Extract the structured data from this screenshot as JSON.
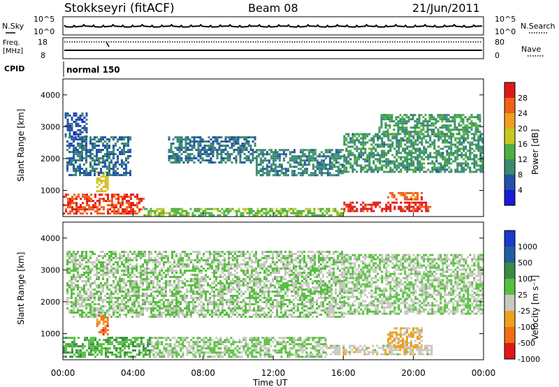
{
  "header": {
    "station": "Stokkseyri (fitACF)",
    "beam": "Beam 08",
    "date": "21/Jun/2011"
  },
  "strip_noise": {
    "left_label": "N.Sky",
    "right_label": "N.Search",
    "left_ticks": [
      "10^5",
      "10^0"
    ],
    "right_ticks": [
      "10^5",
      "10^0"
    ]
  },
  "strip_freq": {
    "left_label_line1": "Freq.",
    "left_label_line2": "[MHz]",
    "right_label": "Nave",
    "left_ticks": [
      "18",
      "8"
    ],
    "right_ticks": [
      "80",
      "0"
    ]
  },
  "strip_cpid": {
    "label": "CPID",
    "mode_text": "normal 150"
  },
  "xaxis": {
    "label": "Time UT",
    "ticks": [
      "00:00",
      "04:00",
      "08:00",
      "12:00",
      "16:00",
      "20:00",
      "00:00"
    ]
  },
  "power_panel": {
    "ylabel": "Slant Range [km]",
    "yticks": [
      "1000",
      "2000",
      "3000",
      "4000"
    ],
    "colorbar_label": "Power [dB]",
    "colorbar_ticks": [
      "4",
      "8",
      "12",
      "16",
      "20",
      "24",
      "28"
    ],
    "colorbar_colors": [
      "#1a1ad8",
      "#2450a8",
      "#3a8a70",
      "#4fb040",
      "#c8c820",
      "#f0a020",
      "#f06018",
      "#e01818"
    ]
  },
  "velocity_panel": {
    "ylabel": "Slant Range [km]",
    "yticks": [
      "1000",
      "2000",
      "3000",
      "4000"
    ],
    "colorbar_label": "Velocity [m s⁻¹]",
    "colorbar_ticks": [
      "1000",
      "500",
      "100",
      "25",
      "-25",
      "-100",
      "-500",
      "-1000"
    ],
    "colorbar_colors": [
      "#1a3ac8",
      "#2060a0",
      "#3a8a48",
      "#58c040",
      "#c8c8c0",
      "#f0a020",
      "#f07010",
      "#e01818"
    ]
  },
  "chart_data": [
    {
      "type": "heatmap",
      "title": "Power [dB]",
      "xlabel": "Time UT",
      "ylabel": "Slant Range [km]",
      "xlim": [
        0,
        24
      ],
      "ylim": [
        180,
        4500
      ],
      "value_range": [
        0,
        30
      ],
      "regions": [
        {
          "t0": 0.0,
          "t1": 4.6,
          "r0": 250,
          "r1": 900,
          "value": 26
        },
        {
          "t0": 4.6,
          "t1": 16.0,
          "r0": 200,
          "r1": 450,
          "value": 14
        },
        {
          "t0": 16.0,
          "t1": 21.0,
          "r0": 350,
          "r1": 650,
          "value": 28
        },
        {
          "t0": 18.5,
          "t1": 20.5,
          "r0": 700,
          "r1": 950,
          "value": 24
        },
        {
          "t0": 1.9,
          "t1": 2.6,
          "r0": 950,
          "r1": 1600,
          "value": 18
        },
        {
          "t0": 0.2,
          "t1": 3.8,
          "r0": 1500,
          "r1": 2700,
          "value": 7
        },
        {
          "t0": 6.0,
          "t1": 11.0,
          "r0": 1900,
          "r1": 2700,
          "value": 8
        },
        {
          "t0": 11.0,
          "t1": 16.0,
          "r0": 1500,
          "r1": 2300,
          "value": 9
        },
        {
          "t0": 16.0,
          "t1": 24.0,
          "r0": 1600,
          "r1": 2800,
          "value": 10
        },
        {
          "t0": 18.0,
          "t1": 23.8,
          "r0": 2800,
          "r1": 3400,
          "value": 11
        },
        {
          "t0": 0.1,
          "t1": 1.4,
          "r0": 2700,
          "r1": 3450,
          "value": 6
        }
      ]
    },
    {
      "type": "heatmap",
      "title": "Velocity [m s⁻¹]",
      "xlabel": "Time UT",
      "ylabel": "Slant Range [km]",
      "xlim": [
        0,
        24
      ],
      "ylim": [
        180,
        4500
      ],
      "value_range": [
        -1000,
        1000
      ],
      "regions": [
        {
          "t0": 0.0,
          "t1": 5.0,
          "r0": 250,
          "r1": 900,
          "value": 200
        },
        {
          "t0": 5.0,
          "t1": 15.0,
          "r0": 300,
          "r1": 900,
          "value": 40
        },
        {
          "t0": 15.0,
          "t1": 21.0,
          "r0": 350,
          "r1": 650,
          "value": -150
        },
        {
          "t0": 18.5,
          "t1": 20.5,
          "r0": 600,
          "r1": 1200,
          "value": -300
        },
        {
          "t0": 1.9,
          "t1": 2.6,
          "r0": 950,
          "r1": 1600,
          "value": -600
        },
        {
          "t0": 0.2,
          "t1": 16.0,
          "r0": 1500,
          "r1": 3600,
          "value": 0
        },
        {
          "t0": 16.0,
          "t1": 24.0,
          "r0": 1600,
          "r1": 3500,
          "value": 0
        }
      ]
    }
  ]
}
